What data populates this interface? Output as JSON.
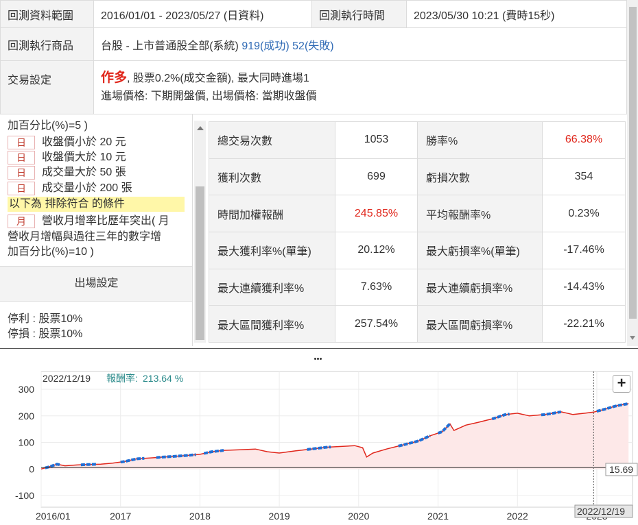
{
  "info": {
    "range_label": "回測資料範圍",
    "range_value": "2016/01/01 - 2023/05/27 (日資料)",
    "time_label": "回測執行時間",
    "time_value": "2023/05/30 10:21 (費時15秒)",
    "target_label": "回測執行商品",
    "target_value": "台股 - 上市普通股全部(系統)",
    "target_success": "919(成功)",
    "target_fail": "52(失敗)",
    "trade_label": "交易設定",
    "trade_mode": "作多",
    "trade_line1": ", 股票0.2%(成交金額), 最大同時進場1",
    "trade_line2": "進場價格: 下期開盤價, 出場價格: 當期收盤價"
  },
  "conditions": {
    "line_top": "加百分比(%)=5 )",
    "items": [
      {
        "tag": "日",
        "text": "收盤價小於 20 元"
      },
      {
        "tag": "日",
        "text": "收盤價大於 10 元"
      },
      {
        "tag": "日",
        "text": "成交量大於 50 張"
      },
      {
        "tag": "日",
        "text": "成交量小於 200 張"
      }
    ],
    "exclude_label": "以下為 排除符合 的條件",
    "exclude_item": {
      "tag": "月",
      "text": "營收月增率比歷年突出( 月"
    },
    "exclude_line2": "營收月增幅與過往三年的數字增",
    "exclude_line3": "加百分比(%)=10 )",
    "exit_header": "出場設定",
    "stop_profit": "停利 : 股票10%",
    "stop_loss": "停損 : 股票10%"
  },
  "stats": [
    {
      "k1": "總交易次數",
      "v1": "1053",
      "k2": "勝率%",
      "v2": "66.38%",
      "v2_red": true,
      "v1_red": false
    },
    {
      "k1": "獲利次數",
      "v1": "699",
      "k2": "虧損次數",
      "v2": "354",
      "v2_red": false,
      "v1_red": false
    },
    {
      "k1": "時間加權報酬",
      "v1": "245.85%",
      "k2": "平均報酬率%",
      "v2": "0.23%",
      "v2_red": false,
      "v1_red": true
    },
    {
      "k1": "最大獲利率%(單筆)",
      "v1": "20.12%",
      "k2": "最大虧損率%(單筆)",
      "v2": "-17.46%",
      "v2_red": false,
      "v1_red": false
    },
    {
      "k1": "最大連續獲利率%",
      "v1": "7.63%",
      "k2": "最大連續虧損率%",
      "v2": "-14.43%",
      "v2_red": false,
      "v1_red": false
    },
    {
      "k1": "最大區間獲利率%",
      "v1": "257.54%",
      "k2": "最大區間虧損率%",
      "v2": "-22.21%",
      "v2_red": false,
      "v1_red": false
    }
  ],
  "chart_data": {
    "type": "area",
    "tooltip_date": "2022/12/19",
    "tooltip_label": "報酬率:",
    "tooltip_value": "213.64 %",
    "x_ticks": [
      "2016/01",
      "2017",
      "2018",
      "2019",
      "2020",
      "2021",
      "2022",
      "2023"
    ],
    "y_ticks": [
      "300",
      "200",
      "100",
      "0",
      "-100"
    ],
    "ylim": [
      -100,
      300
    ],
    "baseline_label": "15.69",
    "cursor_date_label": "2022/12/19",
    "line_color": "#e0261b",
    "highlight_color": "#1f6fd6",
    "fill_color": "#fde8e8",
    "series": [
      {
        "x": 2016.0,
        "y": 0
      },
      {
        "x": 2016.1,
        "y": 8
      },
      {
        "x": 2016.2,
        "y": 18
      },
      {
        "x": 2016.3,
        "y": 12
      },
      {
        "x": 2016.45,
        "y": 15
      },
      {
        "x": 2016.6,
        "y": 17
      },
      {
        "x": 2016.75,
        "y": 18
      },
      {
        "x": 2016.9,
        "y": 22
      },
      {
        "x": 2017.05,
        "y": 28
      },
      {
        "x": 2017.2,
        "y": 38
      },
      {
        "x": 2017.4,
        "y": 42
      },
      {
        "x": 2017.6,
        "y": 46
      },
      {
        "x": 2017.8,
        "y": 50
      },
      {
        "x": 2018.0,
        "y": 55
      },
      {
        "x": 2018.15,
        "y": 65
      },
      {
        "x": 2018.3,
        "y": 70
      },
      {
        "x": 2018.5,
        "y": 72
      },
      {
        "x": 2018.7,
        "y": 75
      },
      {
        "x": 2018.85,
        "y": 65
      },
      {
        "x": 2019.0,
        "y": 60
      },
      {
        "x": 2019.2,
        "y": 68
      },
      {
        "x": 2019.4,
        "y": 75
      },
      {
        "x": 2019.6,
        "y": 82
      },
      {
        "x": 2019.8,
        "y": 85
      },
      {
        "x": 2019.95,
        "y": 88
      },
      {
        "x": 2020.05,
        "y": 80
      },
      {
        "x": 2020.1,
        "y": 45
      },
      {
        "x": 2020.18,
        "y": 60
      },
      {
        "x": 2020.35,
        "y": 75
      },
      {
        "x": 2020.55,
        "y": 90
      },
      {
        "x": 2020.75,
        "y": 105
      },
      {
        "x": 2020.9,
        "y": 125
      },
      {
        "x": 2021.05,
        "y": 140
      },
      {
        "x": 2021.15,
        "y": 170
      },
      {
        "x": 2021.2,
        "y": 145
      },
      {
        "x": 2021.35,
        "y": 165
      },
      {
        "x": 2021.5,
        "y": 175
      },
      {
        "x": 2021.7,
        "y": 190
      },
      {
        "x": 2021.85,
        "y": 205
      },
      {
        "x": 2022.0,
        "y": 210
      },
      {
        "x": 2022.15,
        "y": 200
      },
      {
        "x": 2022.35,
        "y": 205
      },
      {
        "x": 2022.55,
        "y": 215
      },
      {
        "x": 2022.7,
        "y": 205
      },
      {
        "x": 2022.85,
        "y": 210
      },
      {
        "x": 2022.96,
        "y": 214
      },
      {
        "x": 2023.1,
        "y": 225
      },
      {
        "x": 2023.25,
        "y": 238
      },
      {
        "x": 2023.4,
        "y": 246
      }
    ],
    "highlight_segments": [
      [
        2016.05,
        2016.25
      ],
      [
        2016.5,
        2016.7
      ],
      [
        2017.0,
        2017.3
      ],
      [
        2017.45,
        2017.95
      ],
      [
        2018.05,
        2018.3
      ],
      [
        2019.35,
        2019.65
      ],
      [
        2020.5,
        2020.9
      ],
      [
        2021.0,
        2021.15
      ],
      [
        2021.68,
        2021.9
      ],
      [
        2022.3,
        2022.55
      ],
      [
        2023.0,
        2023.4
      ]
    ]
  }
}
